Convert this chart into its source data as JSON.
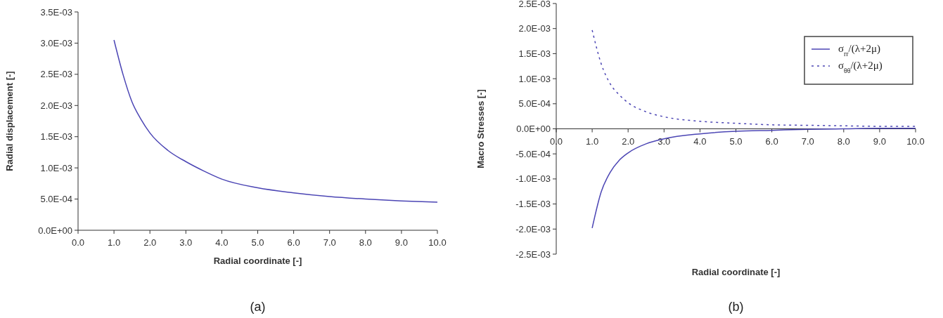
{
  "chart_data": [
    {
      "type": "line",
      "xlabel": "Radial coordinate [-]",
      "ylabel": "Radial displacement [-]",
      "annotations": [
        "(a)"
      ],
      "xlim": [
        0,
        10
      ],
      "ylim": [
        0,
        0.0035
      ],
      "xticks": [
        {
          "value": 0,
          "label": "0.0"
        },
        {
          "value": 1,
          "label": "1.0"
        },
        {
          "value": 2,
          "label": "2.0"
        },
        {
          "value": 3,
          "label": "3.0"
        },
        {
          "value": 4,
          "label": "4.0"
        },
        {
          "value": 5,
          "label": "5.0"
        },
        {
          "value": 6,
          "label": "6.0"
        },
        {
          "value": 7,
          "label": "7.0"
        },
        {
          "value": 8,
          "label": "8.0"
        },
        {
          "value": 9,
          "label": "9.0"
        },
        {
          "value": 10,
          "label": "10.0"
        }
      ],
      "yticks": [
        {
          "value": 0,
          "label": "0.0E+00"
        },
        {
          "value": 0.0005,
          "label": "5.0E-04"
        },
        {
          "value": 0.001,
          "label": "1.0E-03"
        },
        {
          "value": 0.0015,
          "label": "1.5E-03"
        },
        {
          "value": 0.002,
          "label": "2.0E-03"
        },
        {
          "value": 0.0025,
          "label": "2.5E-03"
        },
        {
          "value": 0.003,
          "label": "3.0E-03"
        },
        {
          "value": 0.0035,
          "label": "3.5E-03"
        }
      ],
      "grid": false,
      "legend": false,
      "marker": "none",
      "series": [
        {
          "color": "#4b45b4",
          "line_style": "solid",
          "x": [
            1,
            1.25,
            1.5,
            1.75,
            2,
            2.5,
            3,
            3.5,
            4,
            5,
            6,
            7,
            8,
            9,
            10
          ],
          "values": [
            0.00305,
            0.0025,
            0.00206,
            0.00178,
            0.00156,
            0.00128,
            0.0011,
            0.00095,
            0.00082,
            0.00068,
            0.0006,
            0.00054,
            0.0005,
            0.00047,
            0.00045
          ]
        }
      ]
    },
    {
      "type": "line",
      "xlabel": "Radial coordinate [-]",
      "ylabel": "Macro Stresses [-]",
      "annotations": [
        "(b)"
      ],
      "xlim": [
        0,
        10
      ],
      "ylim": [
        -0.0025,
        0.0025
      ],
      "xticks": [
        {
          "value": 0,
          "label": "0.0"
        },
        {
          "value": 1,
          "label": "1.0"
        },
        {
          "value": 2,
          "label": "2.0"
        },
        {
          "value": 3,
          "label": "3.0"
        },
        {
          "value": 4,
          "label": "4.0"
        },
        {
          "value": 5,
          "label": "5.0"
        },
        {
          "value": 6,
          "label": "6.0"
        },
        {
          "value": 7,
          "label": "7.0"
        },
        {
          "value": 8,
          "label": "8.0"
        },
        {
          "value": 9,
          "label": "9.0"
        },
        {
          "value": 10,
          "label": "10.0"
        }
      ],
      "yticks": [
        {
          "value": -0.0025,
          "label": "-2.5E-03"
        },
        {
          "value": -0.002,
          "label": "-2.0E-03"
        },
        {
          "value": -0.0015,
          "label": "-1.5E-03"
        },
        {
          "value": -0.001,
          "label": "-1.0E-03"
        },
        {
          "value": -0.0005,
          "label": "-5.0E-04"
        },
        {
          "value": 0,
          "label": "0.0E+00"
        },
        {
          "value": 0.0005,
          "label": "5.0E-04"
        },
        {
          "value": 0.001,
          "label": "1.0E-03"
        },
        {
          "value": 0.0015,
          "label": "1.5E-03"
        },
        {
          "value": 0.002,
          "label": "2.0E-03"
        },
        {
          "value": 0.0025,
          "label": "2.5E-03"
        }
      ],
      "grid": false,
      "legend": "top right",
      "marker": "none",
      "series": [
        {
          "name": "σ$_{rr}$/(λ+2μ)",
          "color": "#4b45b4",
          "line_style": "solid",
          "x": [
            1,
            1.25,
            1.5,
            1.75,
            2,
            2.5,
            3,
            4,
            5,
            6,
            7,
            8,
            9,
            10
          ],
          "values": [
            -0.00198,
            -0.00126,
            -0.00087,
            -0.00063,
            -0.00048,
            -0.0003,
            -0.0002,
            -0.0001,
            -5e-05,
            -3e-05,
            -1e-05,
            0,
            1e-05,
            1e-05
          ]
        },
        {
          "name": "σ$_{θθ}$/(λ+2μ)",
          "color": "#4b45b4",
          "line_style": "dotted",
          "x": [
            1,
            1.25,
            1.5,
            1.75,
            2,
            2.5,
            3,
            4,
            5,
            6,
            7,
            8,
            9,
            10
          ],
          "values": [
            0.00197,
            0.0013,
            0.0009,
            0.00068,
            0.00052,
            0.00034,
            0.00024,
            0.00015,
            0.00011,
            8e-05,
            7e-05,
            6e-05,
            5e-05,
            5e-05
          ]
        }
      ]
    }
  ]
}
